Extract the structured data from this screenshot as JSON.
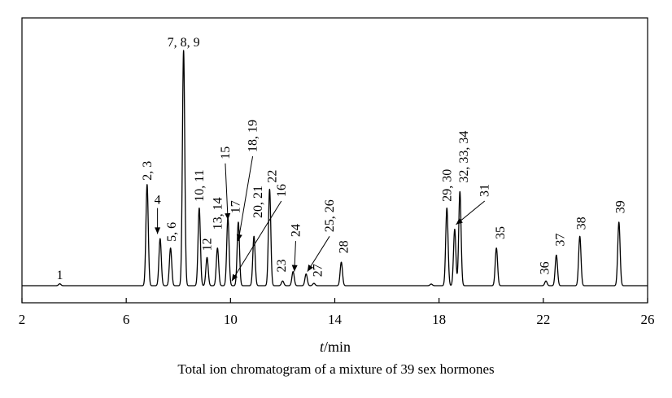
{
  "chart_data": {
    "type": "line",
    "title": "",
    "caption": "Total ion chromatogram of a mixture of 39 sex hormones",
    "xlabel_italic": "t",
    "xlabel_unit": "/min",
    "ylabel": "",
    "xlim": [
      2,
      26
    ],
    "ylim": [
      0,
      100
    ],
    "xticks": [
      2,
      6,
      10,
      14,
      18,
      22,
      26
    ],
    "peaks": [
      {
        "x": 3.45,
        "h": 0.8
      },
      {
        "x": 6.8,
        "h": 43
      },
      {
        "x": 7.3,
        "h": 20
      },
      {
        "x": 7.7,
        "h": 16
      },
      {
        "x": 8.2,
        "h": 100
      },
      {
        "x": 8.8,
        "h": 33
      },
      {
        "x": 9.1,
        "h": 12
      },
      {
        "x": 9.5,
        "h": 16
      },
      {
        "x": 9.9,
        "h": 29
      },
      {
        "x": 10.3,
        "h": 27
      },
      {
        "x": 10.9,
        "h": 21
      },
      {
        "x": 11.5,
        "h": 41
      },
      {
        "x": 12.0,
        "h": 2
      },
      {
        "x": 12.4,
        "h": 6
      },
      {
        "x": 12.9,
        "h": 5
      },
      {
        "x": 13.2,
        "h": 1
      },
      {
        "x": 14.25,
        "h": 10
      },
      {
        "x": 17.7,
        "h": 0.7
      },
      {
        "x": 18.3,
        "h": 33
      },
      {
        "x": 18.6,
        "h": 24
      },
      {
        "x": 18.8,
        "h": 40
      },
      {
        "x": 20.2,
        "h": 16
      },
      {
        "x": 22.1,
        "h": 2
      },
      {
        "x": 22.5,
        "h": 13
      },
      {
        "x": 23.4,
        "h": 21
      },
      {
        "x": 24.9,
        "h": 27
      }
    ],
    "annotations": [
      {
        "text": "1",
        "x": 3.45,
        "h": 1,
        "rotate": false
      },
      {
        "text": "2, 3",
        "x": 6.8,
        "h": 43,
        "rotate": true
      },
      {
        "text": "4",
        "x": 7.2,
        "h": 33,
        "rotate": false,
        "arrow": true,
        "ax": 7.2,
        "ah": 22
      },
      {
        "text": "5, 6",
        "x": 7.75,
        "h": 17,
        "rotate": true
      },
      {
        "text": "7, 8, 9",
        "x": 8.2,
        "h": 100,
        "rotate": false
      },
      {
        "text": "10, 11",
        "x": 8.8,
        "h": 34,
        "rotate": true
      },
      {
        "text": "12",
        "x": 9.1,
        "h": 13,
        "rotate": true
      },
      {
        "text": "13, 14",
        "x": 9.5,
        "h": 22,
        "rotate": true
      },
      {
        "text": "15",
        "x": 9.8,
        "h": 52,
        "rotate": true,
        "arrow": true,
        "ax": 9.9,
        "ah": 28
      },
      {
        "text": "17",
        "x": 10.2,
        "h": 29,
        "rotate": true
      },
      {
        "text": "18, 19",
        "x": 10.85,
        "h": 55,
        "rotate": true,
        "arrow": true,
        "ax": 10.3,
        "ah": 19
      },
      {
        "text": "20, 21",
        "x": 11.05,
        "h": 27,
        "rotate": true
      },
      {
        "text": "16",
        "x": 11.95,
        "h": 36,
        "rotate": true,
        "arrow": true,
        "ax": 10.05,
        "ah": 2
      },
      {
        "text": "22",
        "x": 11.6,
        "h": 42,
        "rotate": true
      },
      {
        "text": "23",
        "x": 11.95,
        "h": 4,
        "rotate": true
      },
      {
        "text": "24",
        "x": 12.5,
        "h": 19,
        "rotate": true,
        "arrow": true,
        "ax": 12.45,
        "ah": 6
      },
      {
        "text": "25, 26",
        "x": 13.8,
        "h": 21,
        "rotate": true,
        "arrow": true,
        "ax": 12.95,
        "ah": 6
      },
      {
        "text": "27",
        "x": 13.35,
        "h": 2,
        "rotate": true
      },
      {
        "text": "28",
        "x": 14.35,
        "h": 12,
        "rotate": true
      },
      {
        "text": "29, 30",
        "x": 18.3,
        "h": 34,
        "rotate": true
      },
      {
        "text": "32, 33, 34",
        "x": 18.95,
        "h": 42,
        "rotate": true
      },
      {
        "text": "31",
        "x": 19.75,
        "h": 36,
        "rotate": true,
        "arrow": true,
        "ax": 18.65,
        "ah": 26
      },
      {
        "text": "35",
        "x": 20.35,
        "h": 18,
        "rotate": true
      },
      {
        "text": "36",
        "x": 22.05,
        "h": 3,
        "rotate": true
      },
      {
        "text": "37",
        "x": 22.65,
        "h": 15,
        "rotate": true
      },
      {
        "text": "38",
        "x": 23.45,
        "h": 22,
        "rotate": true
      },
      {
        "text": "39",
        "x": 24.95,
        "h": 29,
        "rotate": true
      }
    ]
  }
}
